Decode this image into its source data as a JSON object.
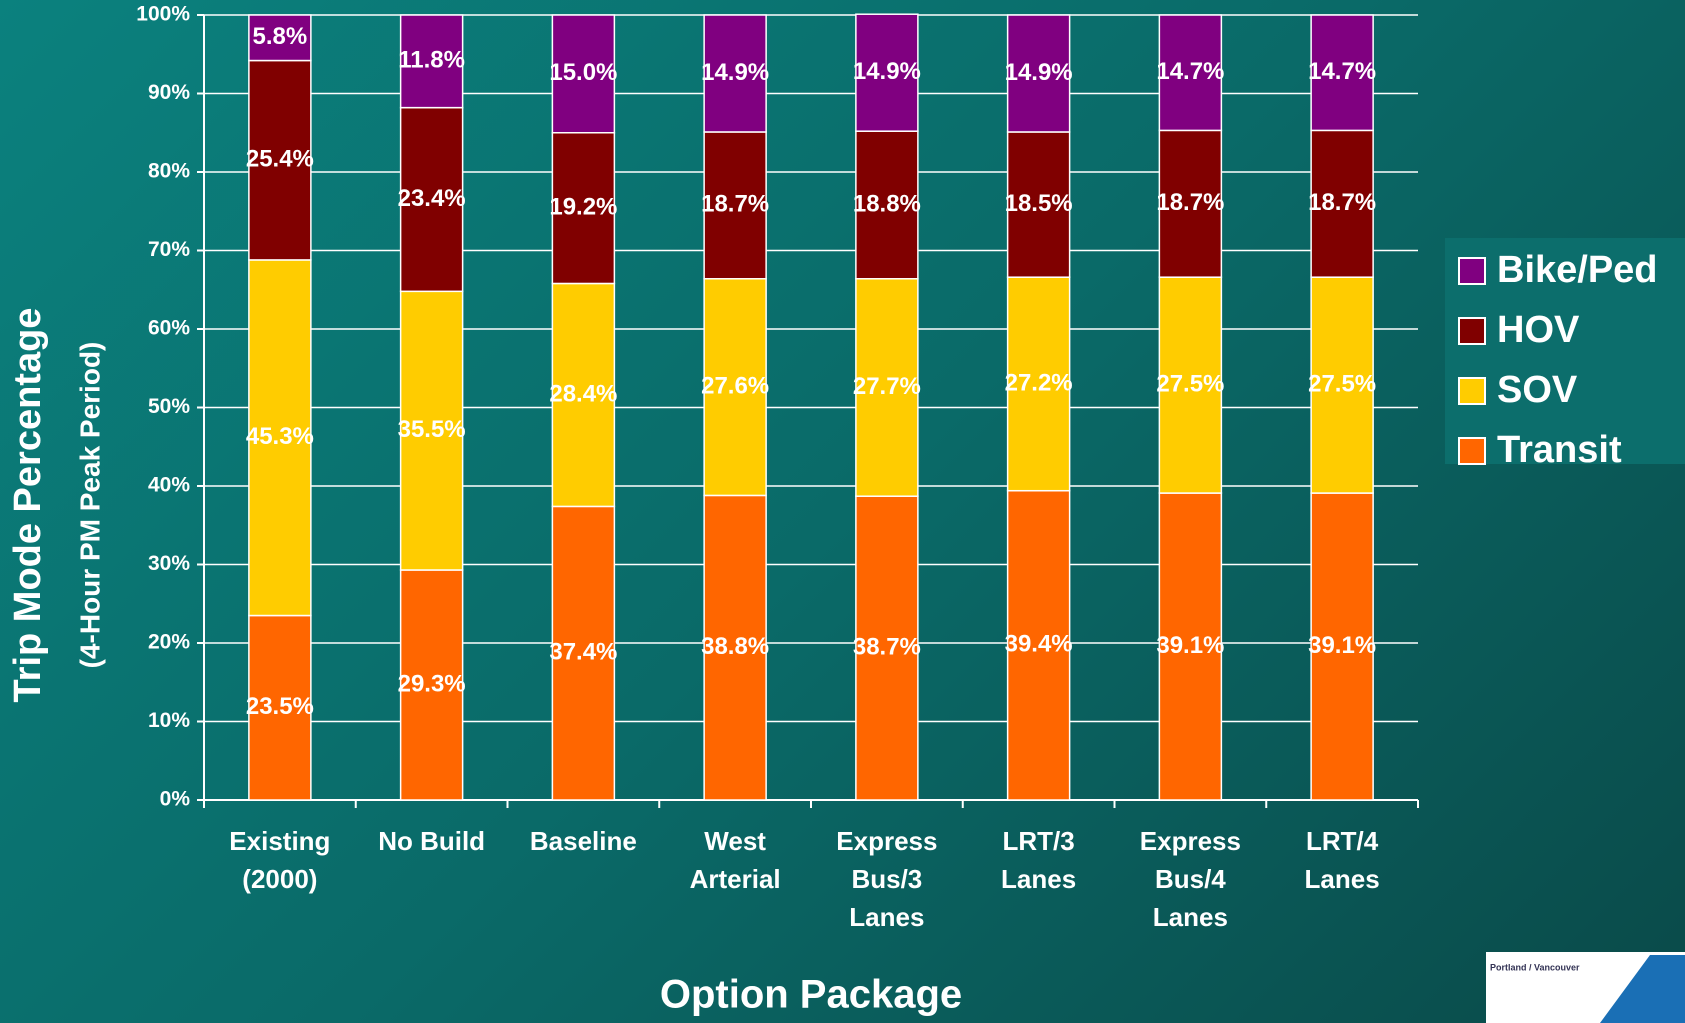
{
  "chart_data": {
    "type": "stacked_bar",
    "ylabel": "Trip Mode Percentage",
    "ylabel_sub": "(4-Hour PM Peak Period)",
    "xlabel": "Option Package",
    "logo_text": "Portland / Vancouver",
    "categories": [
      "Existing\n(2000)",
      "No Build",
      "Baseline",
      "West\nArterial",
      "Express\nBus/3\nLanes",
      "LRT/3\nLanes",
      "Express\nBus/4\nLanes",
      "LRT/4\nLanes"
    ],
    "series": [
      {
        "name": "Transit",
        "color": "#ff6600",
        "values": [
          23.5,
          29.3,
          37.4,
          38.8,
          38.7,
          39.4,
          39.1,
          39.1
        ],
        "value_labels": [
          "23.5%",
          "29.3%",
          "37.4%",
          "38.8%",
          "38.7%",
          "39.4%",
          "39.1%",
          "39.1%"
        ]
      },
      {
        "name": "SOV",
        "color": "#ffcc00",
        "values": [
          45.3,
          35.5,
          28.4,
          27.6,
          27.7,
          27.2,
          27.5,
          27.5
        ],
        "value_labels": [
          "45.3%",
          "35.5%",
          "28.4%",
          "27.6%",
          "27.7%",
          "27.2%",
          "27.5%",
          "27.5%"
        ]
      },
      {
        "name": "HOV",
        "color": "#800000",
        "values": [
          25.4,
          23.4,
          19.2,
          18.7,
          18.8,
          18.5,
          18.7,
          18.7
        ],
        "value_labels": [
          "25.4%",
          "23.4%",
          "19.2%",
          "18.7%",
          "18.8%",
          "18.5%",
          "18.7%",
          "18.7%"
        ]
      },
      {
        "name": "Bike/Ped",
        "color": "#800080",
        "values": [
          5.8,
          11.8,
          15.0,
          14.9,
          14.9,
          14.9,
          14.7,
          14.7
        ],
        "value_labels": [
          "5.8%",
          "11.8%",
          "15.0%",
          "14.9%",
          "14.9%",
          "14.9%",
          "14.7%",
          "14.7%"
        ]
      }
    ],
    "ylim": [
      0,
      100
    ],
    "yticks": [
      {
        "value": 0,
        "label": "0%"
      },
      {
        "value": 10,
        "label": "10%"
      },
      {
        "value": 20,
        "label": "20%"
      },
      {
        "value": 30,
        "label": "30%"
      },
      {
        "value": 40,
        "label": "40%"
      },
      {
        "value": 50,
        "label": "50%"
      },
      {
        "value": 60,
        "label": "60%"
      },
      {
        "value": 70,
        "label": "70%"
      },
      {
        "value": 80,
        "label": "80%"
      },
      {
        "value": 90,
        "label": "90%"
      },
      {
        "value": 100,
        "label": "100%"
      }
    ],
    "grid": true,
    "legend": "right"
  }
}
